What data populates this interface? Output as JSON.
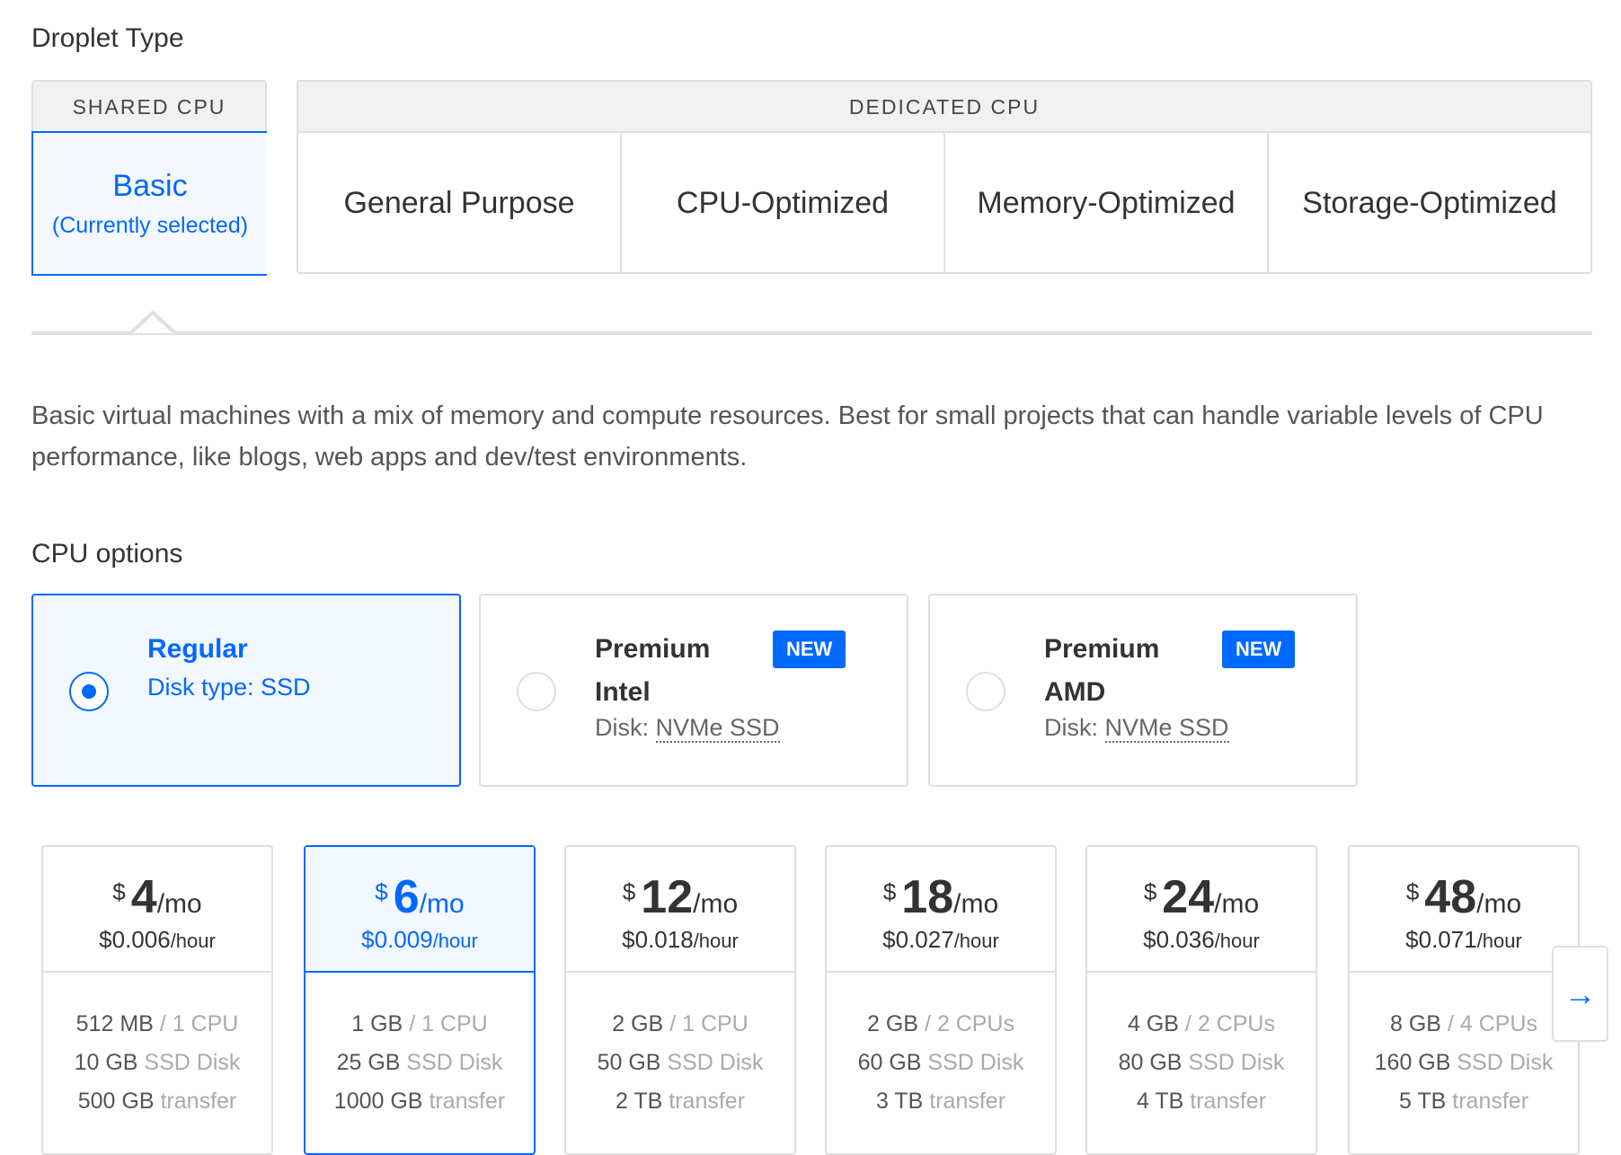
{
  "droplet_type": {
    "title": "Droplet Type",
    "shared_header": "SHARED CPU",
    "dedicated_header": "DEDICATED CPU",
    "basic": {
      "label": "Basic",
      "sub": "(Currently selected)"
    },
    "dedicated_tabs": [
      "General Purpose",
      "CPU-Optimized",
      "Memory-Optimized",
      "Storage-Optimized"
    ]
  },
  "description": "Basic virtual machines with a mix of memory and compute resources. Best for small projects that can handle variable levels of CPU performance, like blogs, web apps and dev/test environments.",
  "cpu_options": {
    "title": "CPU options",
    "items": [
      {
        "name": "Regular",
        "disk_label": "Disk type: SSD",
        "selected": true
      },
      {
        "name1": "Premium",
        "name2": "Intel",
        "badge": "NEW",
        "disk_prefix": "Disk:",
        "disk": "NVMe SSD"
      },
      {
        "name1": "Premium",
        "name2": "AMD",
        "badge": "NEW",
        "disk_prefix": "Disk:",
        "disk": "NVMe SSD"
      }
    ]
  },
  "accent_color": "#0069ff",
  "plans": [
    {
      "cur": "$",
      "amt": "4",
      "per": "/mo",
      "hour": "$0.006",
      "hour_unit": "/hour",
      "mem": "512 MB",
      "cpu": "/ 1 CPU",
      "disk": "10 GB",
      "disk_l": "SSD Disk",
      "xfer": "500 GB",
      "xfer_l": "transfer"
    },
    {
      "cur": "$",
      "amt": "6",
      "per": "/mo",
      "hour": "$0.009",
      "hour_unit": "/hour",
      "mem": "1 GB",
      "cpu": "/ 1 CPU",
      "disk": "25 GB",
      "disk_l": "SSD Disk",
      "xfer": "1000 GB",
      "xfer_l": "transfer",
      "selected": true
    },
    {
      "cur": "$",
      "amt": "12",
      "per": "/mo",
      "hour": "$0.018",
      "hour_unit": "/hour",
      "mem": "2 GB",
      "cpu": "/ 1 CPU",
      "disk": "50 GB",
      "disk_l": "SSD Disk",
      "xfer": "2 TB",
      "xfer_l": "transfer"
    },
    {
      "cur": "$",
      "amt": "18",
      "per": "/mo",
      "hour": "$0.027",
      "hour_unit": "/hour",
      "mem": "2 GB",
      "cpu": "/ 2 CPUs",
      "disk": "60 GB",
      "disk_l": "SSD Disk",
      "xfer": "3 TB",
      "xfer_l": "transfer"
    },
    {
      "cur": "$",
      "amt": "24",
      "per": "/mo",
      "hour": "$0.036",
      "hour_unit": "/hour",
      "mem": "4 GB",
      "cpu": "/ 2 CPUs",
      "disk": "80 GB",
      "disk_l": "SSD Disk",
      "xfer": "4 TB",
      "xfer_l": "transfer"
    },
    {
      "cur": "$",
      "amt": "48",
      "per": "/mo",
      "hour": "$0.071",
      "hour_unit": "/hour",
      "mem": "8 GB",
      "cpu": "/ 4 CPUs",
      "disk": "160 GB",
      "disk_l": "SSD Disk",
      "xfer": "5 TB",
      "xfer_l": "transfer"
    }
  ],
  "next_icon": "arrow-right-icon",
  "next_glyph": "→"
}
